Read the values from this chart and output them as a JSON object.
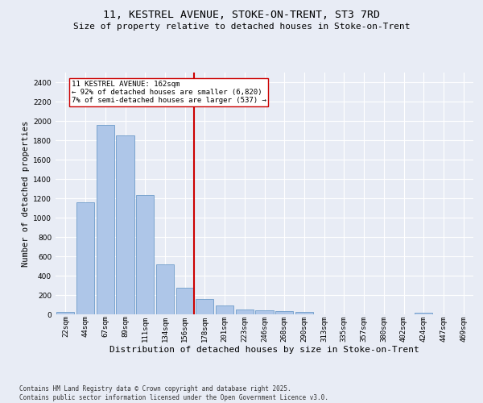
{
  "title": "11, KESTREL AVENUE, STOKE-ON-TRENT, ST3 7RD",
  "subtitle": "Size of property relative to detached houses in Stoke-on-Trent",
  "xlabel": "Distribution of detached houses by size in Stoke-on-Trent",
  "ylabel": "Number of detached properties",
  "categories": [
    "22sqm",
    "44sqm",
    "67sqm",
    "89sqm",
    "111sqm",
    "134sqm",
    "156sqm",
    "178sqm",
    "201sqm",
    "223sqm",
    "246sqm",
    "268sqm",
    "290sqm",
    "313sqm",
    "335sqm",
    "357sqm",
    "380sqm",
    "402sqm",
    "424sqm",
    "447sqm",
    "469sqm"
  ],
  "values": [
    25,
    1160,
    1960,
    1850,
    1230,
    520,
    275,
    160,
    95,
    50,
    45,
    35,
    22,
    0,
    0,
    0,
    0,
    0,
    15,
    0,
    0
  ],
  "bar_color": "#aec6e8",
  "bar_edge_color": "#5a8fc2",
  "vline_index": 6,
  "vline_color": "#cc0000",
  "annotation_text": "11 KESTREL AVENUE: 162sqm\n← 92% of detached houses are smaller (6,820)\n7% of semi-detached houses are larger (537) →",
  "annotation_box_color": "#ffffff",
  "annotation_box_edge": "#cc0000",
  "ylim": [
    0,
    2500
  ],
  "yticks": [
    0,
    200,
    400,
    600,
    800,
    1000,
    1200,
    1400,
    1600,
    1800,
    2000,
    2200,
    2400
  ],
  "bg_color": "#e8ecf5",
  "grid_color": "#ffffff",
  "footer_line1": "Contains HM Land Registry data © Crown copyright and database right 2025.",
  "footer_line2": "Contains public sector information licensed under the Open Government Licence v3.0.",
  "title_fontsize": 9.5,
  "subtitle_fontsize": 8,
  "axis_label_fontsize": 7.5,
  "tick_fontsize": 6.5,
  "annotation_fontsize": 6.5,
  "footer_fontsize": 5.5
}
